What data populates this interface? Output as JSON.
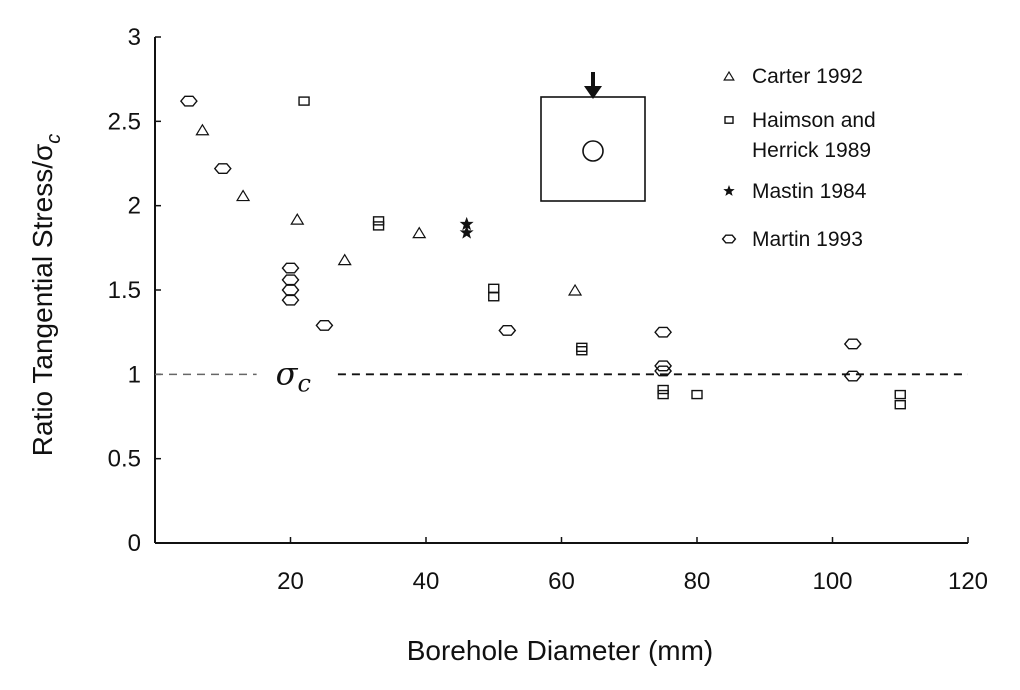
{
  "chart_data": {
    "type": "scatter",
    "title": "",
    "xlabel": "Borehole Diameter (mm)",
    "ylabel": "Ratio Tangential Stress/σ",
    "ylabel_sub": "c",
    "xlim": [
      0,
      120
    ],
    "ylim": [
      0,
      3
    ],
    "xticks": [
      "20",
      "40",
      "60",
      "80",
      "100",
      "120"
    ],
    "xtick_values": [
      20,
      40,
      60,
      80,
      100,
      120
    ],
    "yticks": [
      "0",
      "0.5",
      "1",
      "1.5",
      "2",
      "2.5",
      "3"
    ],
    "ytick_values": [
      0,
      0.5,
      1,
      1.5,
      2,
      2.5,
      3
    ],
    "grid": false,
    "legend_position": "top-right",
    "reference_line": {
      "y": 1,
      "style": "dashed",
      "label": "σ",
      "label_sub": "c"
    },
    "series": [
      {
        "name": "Carter 1992",
        "marker": "triangle",
        "points": [
          [
            7,
            2.45
          ],
          [
            13,
            2.06
          ],
          [
            21,
            1.92
          ],
          [
            28,
            1.68
          ],
          [
            39,
            1.84
          ],
          [
            62,
            1.5
          ]
        ]
      },
      {
        "name": "Haimson and Herrick 1989",
        "marker": "square",
        "points": [
          [
            22,
            2.62
          ],
          [
            33,
            1.91
          ],
          [
            33,
            1.88
          ],
          [
            50,
            1.51
          ],
          [
            50,
            1.46
          ],
          [
            63,
            1.16
          ],
          [
            63,
            1.14
          ],
          [
            75,
            0.91
          ],
          [
            75,
            0.88
          ],
          [
            80,
            0.88
          ],
          [
            110,
            0.88
          ],
          [
            110,
            0.82
          ]
        ]
      },
      {
        "name": "Mastin 1984",
        "marker": "star",
        "points": [
          [
            46,
            1.89
          ],
          [
            46,
            1.84
          ]
        ]
      },
      {
        "name": "Martin 1993",
        "marker": "hexagon",
        "points": [
          [
            5,
            2.62
          ],
          [
            10,
            2.22
          ],
          [
            20,
            1.63
          ],
          [
            20,
            1.56
          ],
          [
            20,
            1.5
          ],
          [
            20,
            1.44
          ],
          [
            25,
            1.29
          ],
          [
            52,
            1.26
          ],
          [
            75,
            1.25
          ],
          [
            75,
            1.05
          ],
          [
            75,
            1.02
          ],
          [
            103,
            1.18
          ],
          [
            103,
            0.99
          ]
        ]
      }
    ],
    "inset": {
      "shape": "square-with-hole",
      "arrow": "down"
    }
  }
}
